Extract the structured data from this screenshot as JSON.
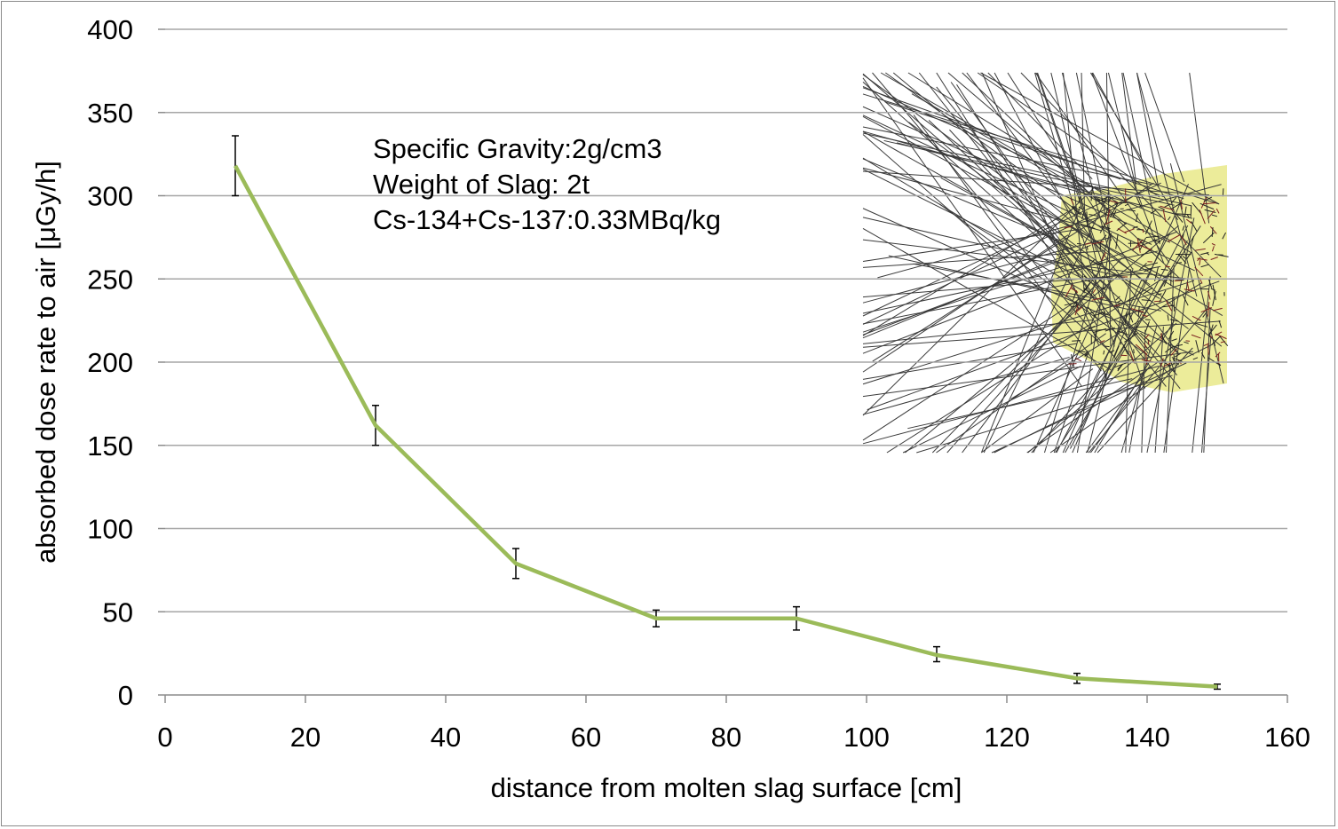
{
  "chart_data": {
    "type": "line",
    "title": "",
    "xlabel": "distance from molten slag surface [cm]",
    "ylabel": "absorbed dose rate to air [μGy/h]",
    "xlim": [
      0,
      160
    ],
    "ylim": [
      0,
      400
    ],
    "x_ticks": [
      "0",
      "20",
      "40",
      "60",
      "80",
      "100",
      "120",
      "140",
      "160"
    ],
    "y_ticks": [
      "0",
      "50",
      "100",
      "150",
      "200",
      "250",
      "300",
      "350",
      "400"
    ],
    "grid": true,
    "series": [
      {
        "name": "absorbed dose rate",
        "color": "#9bbb59",
        "x": [
          10,
          30,
          50,
          70,
          90,
          110,
          130,
          150
        ],
        "values": [
          318,
          162,
          79,
          46,
          46,
          24,
          10,
          5
        ],
        "err_low": [
          18,
          12,
          9,
          5,
          7,
          4,
          3,
          1.5
        ],
        "err_high": [
          18,
          12,
          9,
          5,
          7,
          5,
          3,
          1.5
        ]
      }
    ],
    "annotations": [
      "Specific Gravity:2g/cm3",
      "Weight of Slag: 2t",
      "Cs-134+Cs-137:0.33MBq/kg"
    ]
  },
  "inset": {
    "description_name": "simulation-tracks-image",
    "slag_color": "#ecec9a"
  }
}
